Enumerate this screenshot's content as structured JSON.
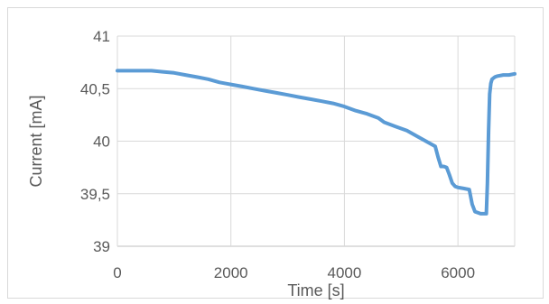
{
  "chart_data": {
    "type": "line",
    "title": "",
    "xlabel": "Time [s]",
    "ylabel": "Current [mA]",
    "xlim": [
      0,
      7000
    ],
    "ylim": [
      39,
      41
    ],
    "x_ticks": [
      0,
      2000,
      4000,
      6000
    ],
    "y_ticks": [
      39,
      39.5,
      40,
      40.5,
      41
    ],
    "x_tick_labels": [
      "0",
      "2000",
      "4000",
      "6000"
    ],
    "y_tick_labels": [
      "39",
      "39,5",
      "40",
      "40,5",
      "41"
    ],
    "grid": true,
    "legend": "none",
    "color": "#5b9bd5",
    "series": [
      {
        "x": [
          0,
          200,
          400,
          600,
          800,
          1000,
          1200,
          1400,
          1600,
          1800,
          2000,
          2200,
          2400,
          2600,
          2800,
          3000,
          3200,
          3400,
          3600,
          3800,
          4000,
          4200,
          4400,
          4600,
          4700,
          4900,
          5100,
          5300,
          5500,
          5600,
          5650,
          5700,
          5750,
          5800,
          5850,
          5900,
          5950,
          6000,
          6100,
          6200,
          6250,
          6300,
          6400,
          6500,
          6520,
          6540,
          6560,
          6580,
          6600,
          6650,
          6700,
          6800,
          6900,
          7000
        ],
        "y": [
          40.67,
          40.67,
          40.67,
          40.67,
          40.66,
          40.65,
          40.63,
          40.61,
          40.59,
          40.56,
          40.54,
          40.52,
          40.5,
          40.48,
          40.46,
          40.44,
          40.42,
          40.4,
          40.38,
          40.36,
          40.33,
          40.29,
          40.26,
          40.22,
          40.18,
          40.14,
          40.1,
          40.04,
          39.98,
          39.95,
          39.85,
          39.76,
          39.76,
          39.75,
          39.68,
          39.6,
          39.57,
          39.56,
          39.55,
          39.54,
          39.4,
          39.33,
          39.31,
          39.31,
          39.6,
          40.1,
          40.45,
          40.55,
          40.59,
          40.61,
          40.62,
          40.63,
          40.63,
          40.64
        ]
      }
    ]
  }
}
